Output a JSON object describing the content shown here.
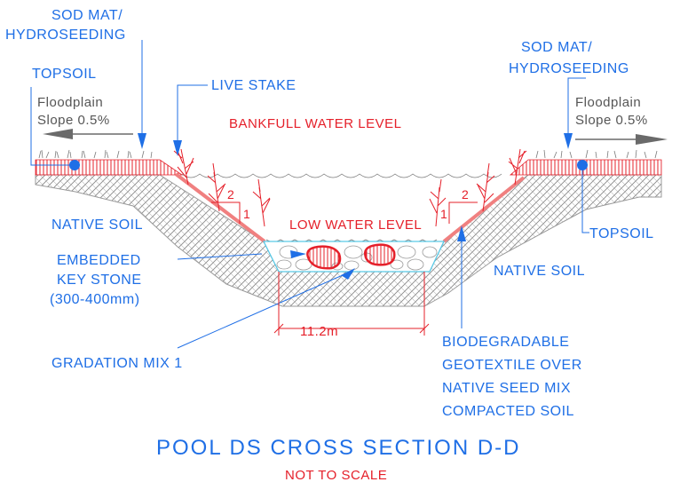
{
  "labels": {
    "sod_mat_left": [
      "SOD MAT/",
      "HYDROSEEDING"
    ],
    "sod_mat_right": [
      "SOD MAT/",
      "HYDROSEEDING"
    ],
    "topsoil_left": "TOPSOIL",
    "topsoil_right": "TOPSOIL",
    "floodplain_left": [
      "Floodplain",
      "Slope 0.5%"
    ],
    "floodplain_right": [
      "Floodplain",
      "Slope 0.5%"
    ],
    "live_stake": "LIVE STAKE",
    "bankfull": "BANKFULL WATER LEVEL",
    "low_water": "LOW WATER LEVEL",
    "native_soil_left": "NATIVE SOIL",
    "native_soil_right": "NATIVE SOIL",
    "key_stone": [
      "EMBEDDED",
      "KEY STONE",
      "(300-400mm)"
    ],
    "gradation_mix": "GRADATION MIX 1",
    "geotextile": [
      "BIODEGRADABLE",
      "GEOTEXTILE OVER",
      "NATIVE SEED MIX",
      "COMPACTED SOIL"
    ],
    "width_dim": "11.2m",
    "slope_rise": "1",
    "slope_run": "2"
  },
  "title": "POOL DS CROSS SECTION D-D",
  "subtitle": "NOT TO SCALE",
  "colors": {
    "blue_text": "#1f6fe6",
    "red_text": "#e5202a",
    "gray_text": "#555555",
    "hatch": "#9a9a9a",
    "water": "#59c9e6"
  }
}
